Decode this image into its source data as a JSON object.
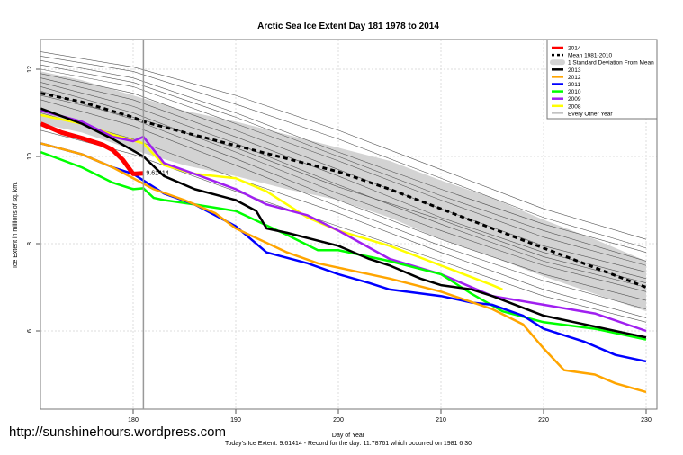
{
  "watermark_url": "http://sunshinehours.wordpress.com",
  "chart_data": {
    "type": "line",
    "title": "Arctic Sea Ice Extent Day 181 1978 to 2014",
    "xlabel": "Day of Year",
    "ylabel": "Ice Extent in millions of sq. km.",
    "subtitle": "Today's Ice Extent: 9.61414  - Record for the day: 11.78761 which occurred on 1981 6 30",
    "xlim": [
      171,
      231
    ],
    "ylim": [
      4.2,
      12.7
    ],
    "xticks": [
      180,
      190,
      200,
      210,
      220,
      230
    ],
    "yticks": [
      6,
      8,
      10,
      12
    ],
    "grid": true,
    "current_day": 181,
    "annotation": {
      "x": 181,
      "y": 9.61414,
      "text": "9.61414",
      "color": "#ff6666"
    },
    "legend_position": "top-right",
    "sd_band": {
      "name": "1 Standard Deviation From Mean",
      "color": "#d3d3d3",
      "x": [
        171,
        175,
        180,
        185,
        190,
        195,
        200,
        205,
        210,
        215,
        220,
        225,
        230
      ],
      "upper": [
        11.95,
        11.75,
        11.4,
        11.05,
        10.8,
        10.5,
        10.2,
        9.9,
        9.45,
        9.05,
        8.55,
        8.1,
        7.6
      ],
      "lower": [
        10.75,
        10.55,
        10.15,
        9.8,
        9.55,
        9.25,
        9.0,
        8.6,
        8.1,
        7.7,
        7.25,
        6.85,
        6.45
      ]
    },
    "series": [
      {
        "name": "2014",
        "color": "#ff0000",
        "width": 5,
        "dash": "",
        "x": [
          171,
          173,
          175,
          177,
          178,
          179,
          180,
          181
        ],
        "y": [
          10.75,
          10.55,
          10.42,
          10.27,
          10.15,
          9.92,
          9.6,
          9.61414
        ]
      },
      {
        "name": "Mean 1981-2010",
        "color": "#000000",
        "width": 3,
        "dash": "5,4",
        "x": [
          171,
          175,
          180,
          181,
          185,
          190,
          195,
          200,
          205,
          210,
          215,
          220,
          225,
          230
        ],
        "y": [
          11.45,
          11.25,
          10.9,
          10.8,
          10.55,
          10.25,
          9.95,
          9.65,
          9.25,
          8.8,
          8.35,
          7.9,
          7.45,
          7.0
        ]
      },
      {
        "name": "2013",
        "color": "#000000",
        "width": 2.5,
        "dash": "",
        "x": [
          171,
          175,
          178,
          181,
          183,
          186,
          190,
          192,
          193,
          195,
          200,
          203,
          205,
          208,
          210,
          213,
          215,
          220,
          225,
          228,
          230
        ],
        "y": [
          11.1,
          10.75,
          10.4,
          10.0,
          9.55,
          9.25,
          9.0,
          8.75,
          8.35,
          8.25,
          7.95,
          7.65,
          7.5,
          7.2,
          7.05,
          6.95,
          6.8,
          6.35,
          6.1,
          5.95,
          5.85
        ]
      },
      {
        "name": "2012",
        "color": "#ffa500",
        "width": 2.5,
        "dash": "",
        "x": [
          171,
          175,
          178,
          180,
          182,
          185,
          188,
          190,
          195,
          198,
          200,
          205,
          210,
          215,
          218,
          220,
          222,
          225,
          227,
          230
        ],
        "y": [
          10.3,
          10.05,
          9.75,
          9.5,
          9.25,
          9.0,
          8.7,
          8.35,
          7.8,
          7.55,
          7.45,
          7.2,
          6.9,
          6.5,
          6.15,
          5.6,
          5.1,
          5.0,
          4.8,
          4.6
        ]
      },
      {
        "name": "2011",
        "color": "#0000ff",
        "width": 2.5,
        "dash": "",
        "x": [
          171,
          175,
          178,
          180,
          183,
          186,
          190,
          193,
          197,
          200,
          203,
          205,
          210,
          213,
          215,
          218,
          220,
          224,
          227,
          230
        ],
        "y": [
          10.3,
          10.05,
          9.75,
          9.6,
          9.15,
          8.9,
          8.4,
          7.8,
          7.55,
          7.3,
          7.1,
          6.95,
          6.8,
          6.65,
          6.6,
          6.35,
          6.05,
          5.75,
          5.45,
          5.3
        ]
      },
      {
        "name": "2010",
        "color": "#00ff00",
        "width": 2.5,
        "dash": "",
        "x": [
          171,
          175,
          178,
          180,
          181,
          182,
          183,
          186,
          190,
          195,
          198,
          200,
          205,
          210,
          213,
          216,
          220,
          225,
          230
        ],
        "y": [
          10.1,
          9.75,
          9.4,
          9.25,
          9.27,
          9.05,
          9.0,
          8.9,
          8.75,
          8.2,
          7.85,
          7.85,
          7.6,
          7.3,
          6.85,
          6.45,
          6.2,
          6.05,
          5.8
        ]
      },
      {
        "name": "2009",
        "color": "#a020f0",
        "width": 2.5,
        "dash": "",
        "x": [
          171,
          175,
          178,
          180,
          181,
          183,
          186,
          190,
          193,
          197,
          200,
          205,
          210,
          215,
          220,
          225,
          230
        ],
        "y": [
          11.05,
          10.8,
          10.45,
          10.35,
          10.45,
          9.85,
          9.6,
          9.25,
          8.9,
          8.65,
          8.3,
          7.65,
          7.3,
          6.8,
          6.6,
          6.4,
          6.0
        ]
      },
      {
        "name": "2008",
        "color": "#ffff00",
        "width": 2.5,
        "dash": "",
        "x": [
          171,
          175,
          178,
          181,
          183,
          186,
          190,
          193,
          197,
          200,
          205,
          210,
          215,
          216
        ],
        "y": [
          10.95,
          10.75,
          10.5,
          10.3,
          9.8,
          9.6,
          9.5,
          9.2,
          8.6,
          8.3,
          7.95,
          7.5,
          7.05,
          6.95
        ]
      }
    ],
    "other_years": {
      "name": "Every Other Year",
      "color": "#555555",
      "x": [
        171,
        180,
        190,
        200,
        210,
        220,
        230
      ],
      "lines": [
        [
          12.4,
          12.05,
          11.4,
          10.6,
          9.7,
          8.8,
          8.1
        ],
        [
          12.3,
          11.95,
          11.2,
          10.4,
          9.5,
          8.6,
          7.9
        ],
        [
          12.2,
          11.8,
          11.0,
          10.1,
          9.25,
          8.45,
          7.8
        ],
        [
          12.1,
          11.7,
          10.9,
          10.0,
          9.1,
          8.3,
          7.6
        ],
        [
          12.0,
          11.6,
          10.75,
          9.9,
          9.0,
          8.15,
          7.5
        ],
        [
          11.9,
          11.45,
          10.6,
          9.7,
          8.8,
          7.95,
          7.35
        ],
        [
          11.8,
          11.3,
          10.45,
          9.55,
          8.6,
          7.8,
          7.2
        ],
        [
          11.7,
          11.15,
          10.3,
          9.35,
          8.45,
          7.6,
          7.0
        ],
        [
          11.6,
          11.0,
          10.1,
          9.15,
          8.3,
          7.5,
          6.9
        ],
        [
          11.5,
          10.85,
          9.95,
          9.0,
          8.1,
          7.3,
          6.7
        ],
        [
          11.3,
          10.7,
          9.8,
          8.85,
          7.95,
          7.15,
          6.5
        ],
        [
          11.0,
          10.4,
          9.5,
          8.7,
          7.8,
          6.95,
          6.3
        ],
        [
          10.6,
          10.05,
          9.2,
          8.4,
          7.6,
          6.8,
          6.2
        ],
        [
          11.4,
          10.9,
          10.2,
          9.3,
          8.55,
          7.7,
          7.1
        ]
      ]
    }
  }
}
